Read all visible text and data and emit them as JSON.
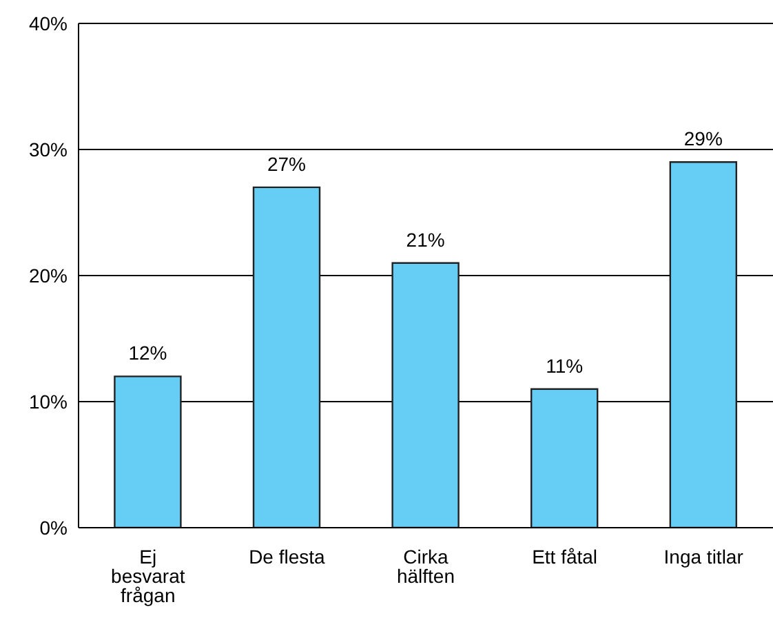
{
  "chart_data": {
    "type": "bar",
    "categories": [
      "Ej besvarat frågan",
      "De flesta",
      "Cirka hälften",
      "Ett fåtal",
      "Inga titlar"
    ],
    "values": [
      12,
      27,
      21,
      11,
      29
    ],
    "value_labels": [
      "12%",
      "27%",
      "21%",
      "11%",
      "29%"
    ],
    "color": "#66cdf5",
    "ylim": [
      0,
      40
    ],
    "yticks": [
      {
        "value": 0,
        "label": "0%"
      },
      {
        "value": 10,
        "label": "10%"
      },
      {
        "value": 20,
        "label": "20%"
      },
      {
        "value": 30,
        "label": "30%"
      },
      {
        "value": 40,
        "label": "40%"
      }
    ],
    "grid": "y"
  }
}
